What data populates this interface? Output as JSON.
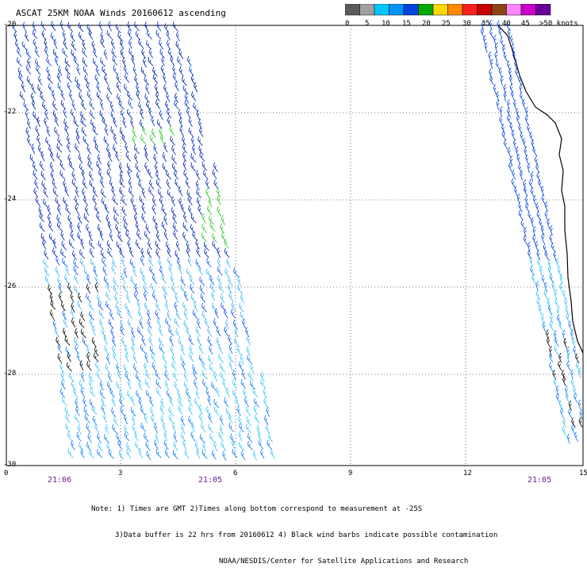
{
  "title": "ASCAT 25KM NOAA Winds 20160612 ascending",
  "legend": {
    "colors": [
      "#5a5a5a",
      "#a0a0a0",
      "#00c8ff",
      "#0090ff",
      "#0044dd",
      "#00aa00",
      "#ffd700",
      "#ff8c00",
      "#ff2020",
      "#c80000",
      "#8b4513",
      "#ff88ff",
      "#cc00cc",
      "#660099"
    ],
    "labels": [
      "0",
      "5",
      "10",
      "15",
      "20",
      "25",
      "30",
      "35",
      "40",
      "45",
      ">50 knots"
    ]
  },
  "y_labels": [
    "-20",
    "-22",
    "-24",
    "-26",
    "-28",
    "-30"
  ],
  "x_labels": [
    "0",
    "3",
    "6",
    "9",
    "12",
    "15"
  ],
  "time_labels": [
    "21:06",
    "21:05",
    "21:05"
  ],
  "notes": [
    "Note: 1) Times are GMT 2)Times along bottom correspond to measurement at -25S",
    "3)Data buffer is 22 hrs from 20160612 4) Black wind barbs indicate possible contamination",
    "NOAA/NESDIS/Center for Satellite Applications and Research"
  ]
}
